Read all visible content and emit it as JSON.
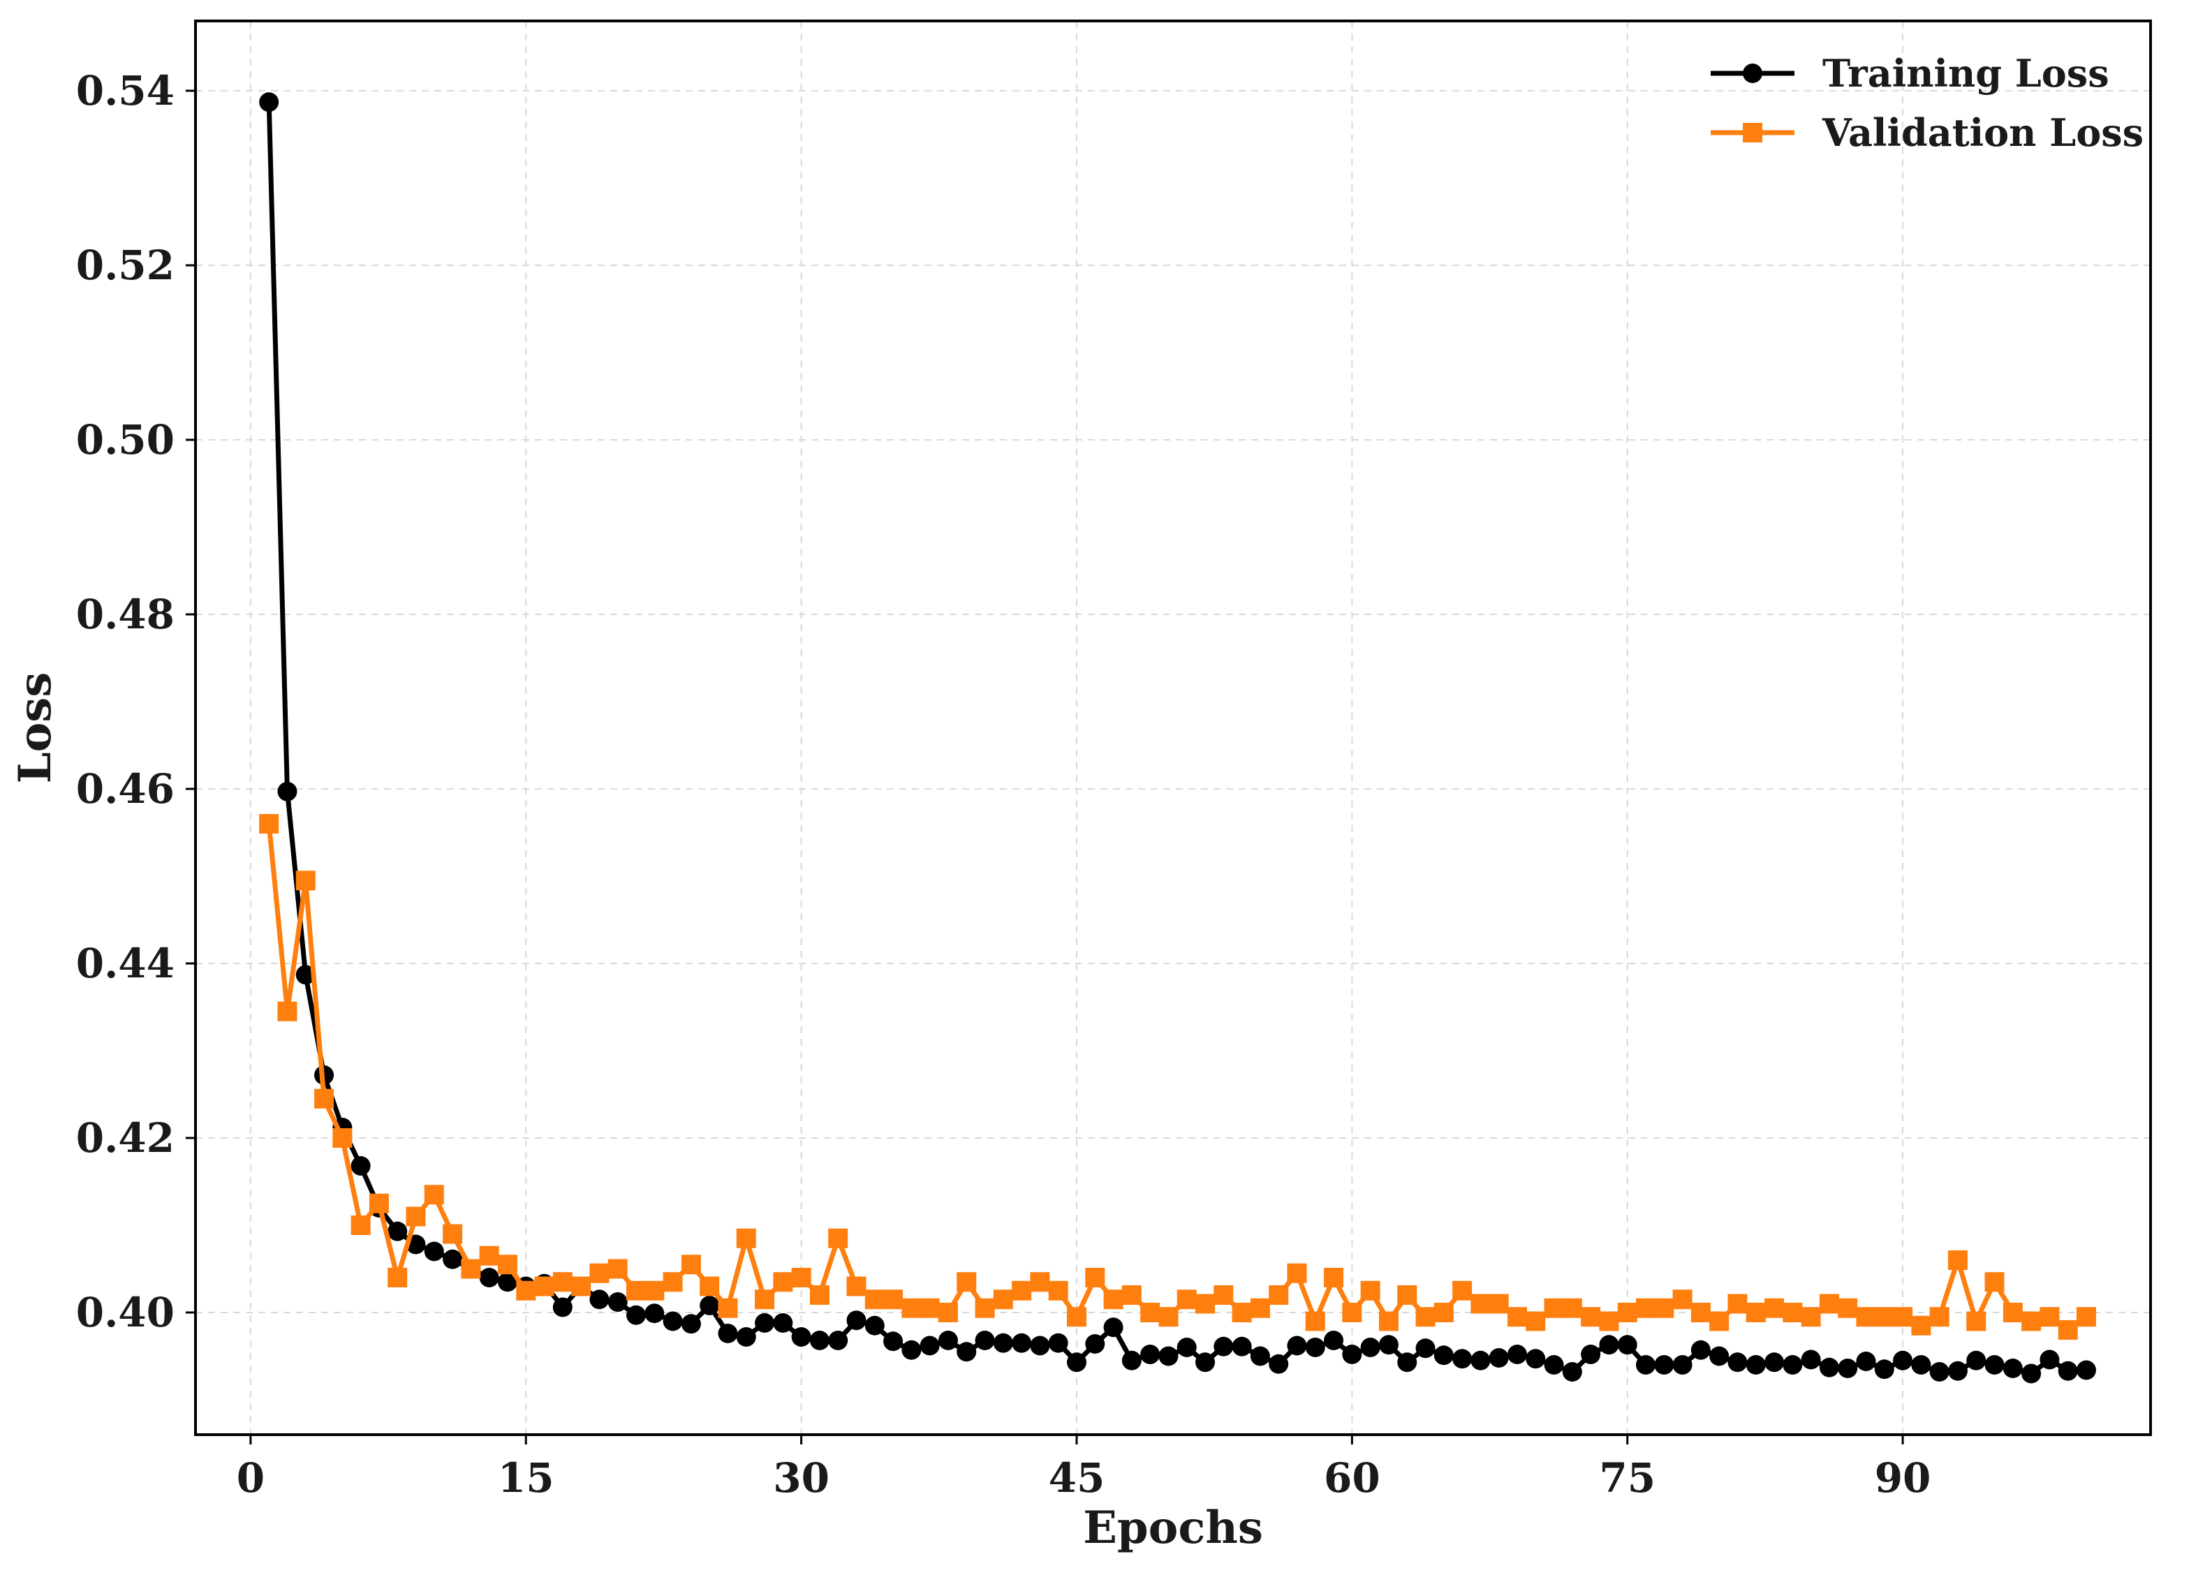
{
  "chart_data": {
    "type": "line",
    "title": "",
    "xlabel": "Epochs",
    "ylabel": "Loss",
    "xlim": [
      -3,
      103.5
    ],
    "ylim": [
      0.386,
      0.548
    ],
    "xticks": [
      0,
      15,
      30,
      45,
      60,
      75,
      90
    ],
    "yticks": [
      0.4,
      0.42,
      0.44,
      0.46,
      0.48,
      0.5,
      0.52,
      0.54
    ],
    "ytick_labels": [
      "0.40",
      "0.42",
      "0.44",
      "0.46",
      "0.48",
      "0.50",
      "0.52",
      "0.54"
    ],
    "grid": true,
    "legend_position": "top-right",
    "x": [
      1,
      2,
      3,
      4,
      5,
      6,
      7,
      8,
      9,
      10,
      11,
      12,
      13,
      14,
      15,
      16,
      17,
      18,
      19,
      20,
      21,
      22,
      23,
      24,
      25,
      26,
      27,
      28,
      29,
      30,
      31,
      32,
      33,
      34,
      35,
      36,
      37,
      38,
      39,
      40,
      41,
      42,
      43,
      44,
      45,
      46,
      47,
      48,
      49,
      50,
      51,
      52,
      53,
      54,
      55,
      56,
      57,
      58,
      59,
      60,
      61,
      62,
      63,
      64,
      65,
      66,
      67,
      68,
      69,
      70,
      71,
      72,
      73,
      74,
      75,
      76,
      77,
      78,
      79,
      80,
      81,
      82,
      83,
      84,
      85,
      86,
      87,
      88,
      89,
      90,
      91,
      92,
      93,
      94,
      95,
      96,
      97,
      98,
      99,
      100
    ],
    "series": [
      {
        "name": "Training Loss",
        "color": "#000000",
        "marker": "circle",
        "values": [
          0.5387,
          0.4597,
          0.4387,
          0.4272,
          0.4212,
          0.4168,
          0.412,
          0.4093,
          0.4078,
          0.407,
          0.4061,
          0.405,
          0.404,
          0.4035,
          0.403,
          0.4033,
          0.4006,
          0.403,
          0.4015,
          0.4012,
          0.3997,
          0.3999,
          0.399,
          0.3987,
          0.4008,
          0.3976,
          0.3972,
          0.3988,
          0.3988,
          0.3972,
          0.3968,
          0.3968,
          0.3991,
          0.3985,
          0.3967,
          0.3957,
          0.3962,
          0.3968,
          0.3955,
          0.3968,
          0.3965,
          0.3965,
          0.3962,
          0.3965,
          0.3943,
          0.3964,
          0.3983,
          0.3945,
          0.3952,
          0.395,
          0.396,
          0.3943,
          0.3961,
          0.3961,
          0.395,
          0.3941,
          0.3962,
          0.396,
          0.3968,
          0.3952,
          0.396,
          0.3963,
          0.3943,
          0.3959,
          0.3951,
          0.3947,
          0.3945,
          0.3948,
          0.3952,
          0.3947,
          0.394,
          0.3932,
          0.3952,
          0.3963,
          0.3963,
          0.394,
          0.394,
          0.394,
          0.3957,
          0.395,
          0.3943,
          0.394,
          0.3943,
          0.394,
          0.3946,
          0.3937,
          0.3936,
          0.3944,
          0.3935,
          0.3945,
          0.394,
          0.3932,
          0.3933,
          0.3945,
          0.394,
          0.3936,
          0.393,
          0.3946,
          0.3933,
          0.3934
        ]
      },
      {
        "name": "Validation Loss",
        "color": "#ff7f0e",
        "marker": "square",
        "values": [
          0.456,
          0.4345,
          0.4495,
          0.4245,
          0.42,
          0.41,
          0.4125,
          0.404,
          0.411,
          0.4135,
          0.409,
          0.405,
          0.4065,
          0.4055,
          0.4025,
          0.403,
          0.4035,
          0.403,
          0.4045,
          0.405,
          0.4025,
          0.4025,
          0.4035,
          0.4055,
          0.403,
          0.4005,
          0.4085,
          0.4015,
          0.4035,
          0.404,
          0.402,
          0.4085,
          0.403,
          0.4015,
          0.4015,
          0.4005,
          0.4005,
          0.4,
          0.4035,
          0.4005,
          0.4015,
          0.4025,
          0.4035,
          0.4025,
          0.3995,
          0.404,
          0.4015,
          0.402,
          0.4,
          0.3995,
          0.4015,
          0.401,
          0.402,
          0.4,
          0.4005,
          0.402,
          0.4045,
          0.399,
          0.404,
          0.4,
          0.4025,
          0.399,
          0.402,
          0.3995,
          0.4,
          0.4025,
          0.401,
          0.401,
          0.3995,
          0.399,
          0.4005,
          0.4005,
          0.3995,
          0.399,
          0.4,
          0.4005,
          0.4005,
          0.4015,
          0.4,
          0.399,
          0.401,
          0.4,
          0.4005,
          0.4,
          0.3995,
          0.401,
          0.4005,
          0.3995,
          0.3995,
          0.3995,
          0.3985,
          0.3995,
          0.406,
          0.399,
          0.4035,
          0.4,
          0.399,
          0.3995,
          0.398,
          0.3995
        ]
      }
    ]
  }
}
